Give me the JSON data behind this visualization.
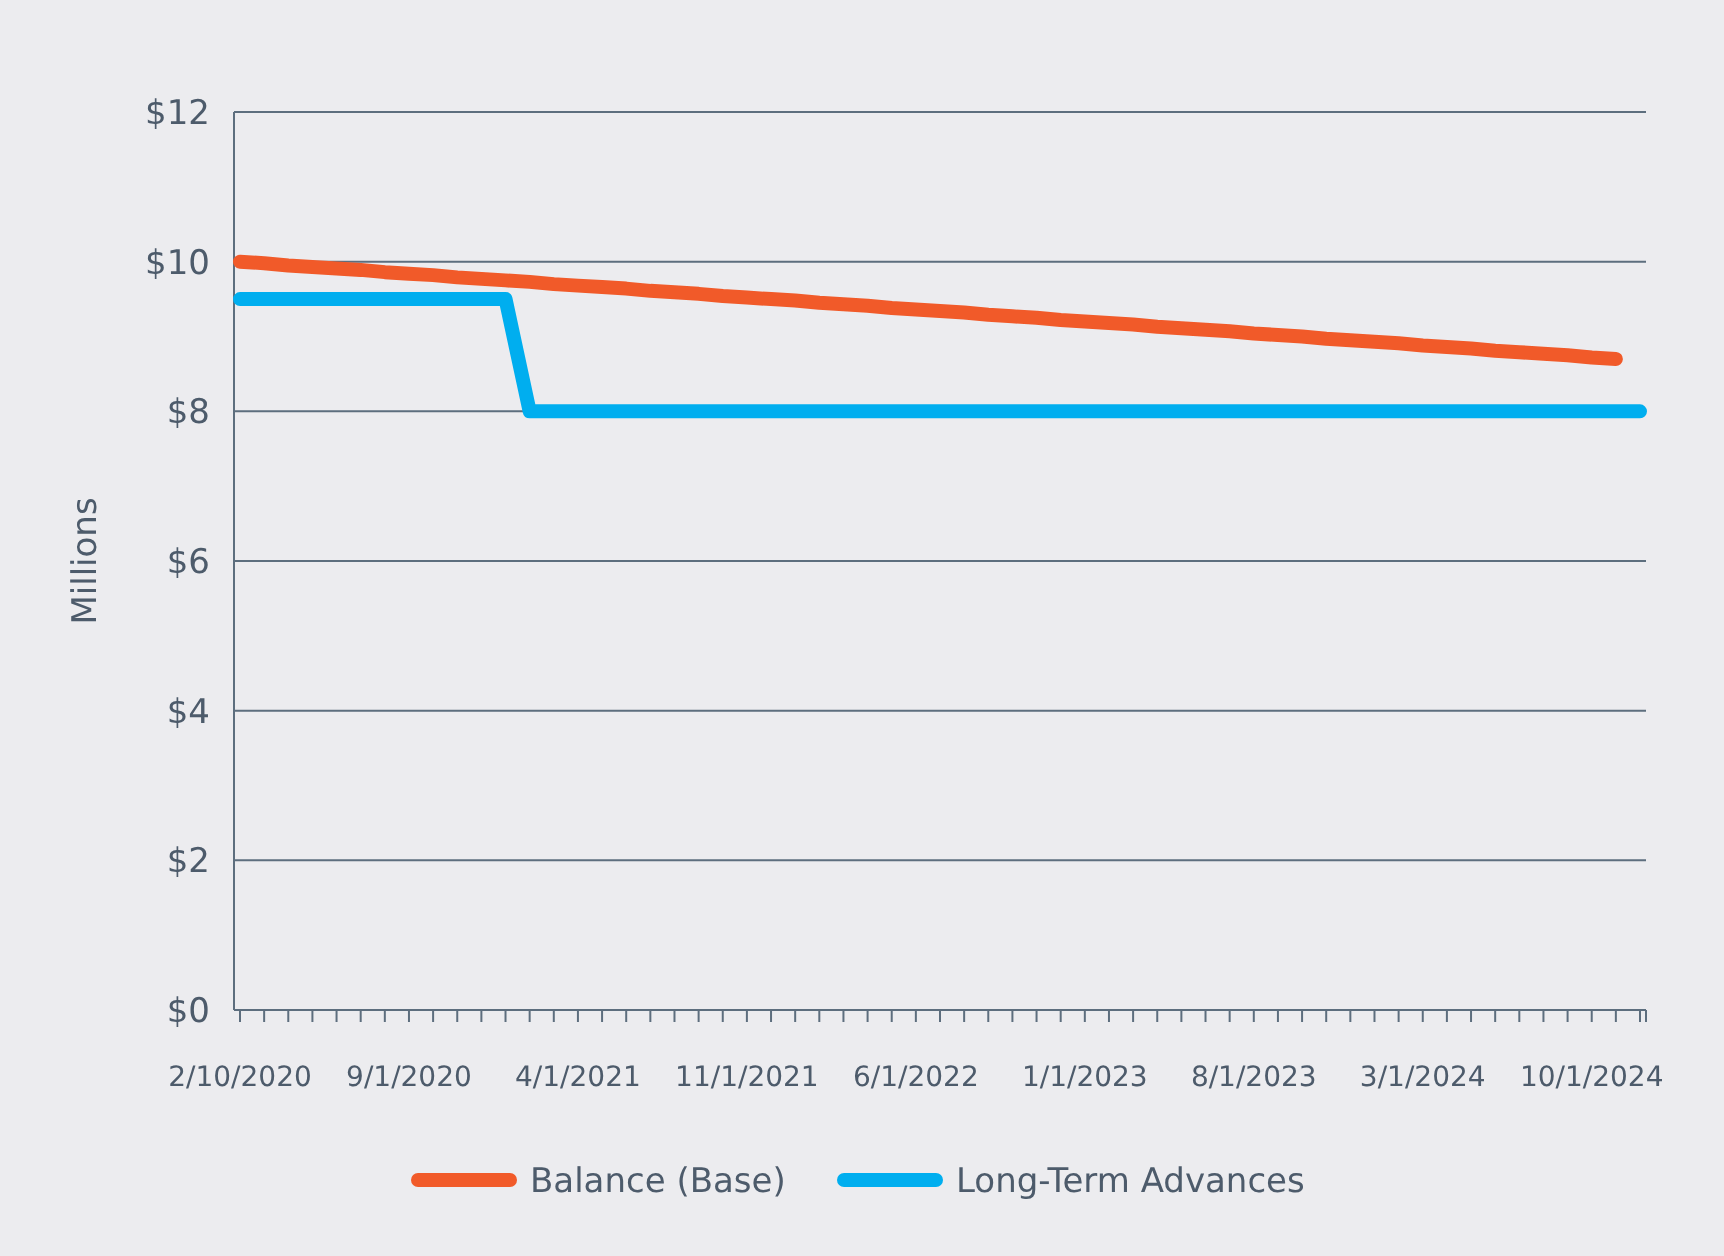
{
  "chart_data": {
    "type": "line",
    "ylabel": "Millions",
    "categories": [
      "2/10/2020",
      null,
      null,
      null,
      null,
      null,
      null,
      "9/1/2020",
      null,
      null,
      null,
      null,
      null,
      null,
      "4/1/2021",
      null,
      null,
      null,
      null,
      null,
      null,
      "11/1/2021",
      null,
      null,
      null,
      null,
      null,
      null,
      "6/1/2022",
      null,
      null,
      null,
      null,
      null,
      null,
      "1/1/2023",
      null,
      null,
      null,
      null,
      null,
      null,
      "8/1/2023",
      null,
      null,
      null,
      null,
      null,
      null,
      "3/1/2024",
      null,
      null,
      null,
      null,
      null,
      null,
      "10/1/2024",
      null,
      null
    ],
    "series": [
      {
        "name": "Balance (Base)",
        "color": "#f15a29",
        "values": [
          10.0,
          9.98,
          9.95,
          9.93,
          9.91,
          9.89,
          9.86,
          9.84,
          9.82,
          9.79,
          9.77,
          9.75,
          9.73,
          9.7,
          9.68,
          9.66,
          9.64,
          9.61,
          9.59,
          9.57,
          9.54,
          9.52,
          9.5,
          9.48,
          9.45,
          9.43,
          9.41,
          9.38,
          9.36,
          9.34,
          9.32,
          9.29,
          9.27,
          9.25,
          9.22,
          9.2,
          9.18,
          9.16,
          9.13,
          9.11,
          9.09,
          9.07,
          9.04,
          9.02,
          9.0,
          8.97,
          8.95,
          8.93,
          8.91,
          8.88,
          8.86,
          8.84,
          8.81,
          8.79,
          8.77,
          8.75,
          8.72,
          8.7,
          null
        ]
      },
      {
        "name": "Long-Term Advances",
        "color": "#00aeef",
        "values": [
          9.5,
          9.5,
          9.5,
          9.5,
          9.5,
          9.5,
          9.5,
          9.5,
          9.5,
          9.5,
          9.5,
          9.5,
          8.0,
          8.0,
          8.0,
          8.0,
          8.0,
          8.0,
          8.0,
          8.0,
          8.0,
          8.0,
          8.0,
          8.0,
          8.0,
          8.0,
          8.0,
          8.0,
          8.0,
          8.0,
          8.0,
          8.0,
          8.0,
          8.0,
          8.0,
          8.0,
          8.0,
          8.0,
          8.0,
          8.0,
          8.0,
          8.0,
          8.0,
          8.0,
          8.0,
          8.0,
          8.0,
          8.0,
          8.0,
          8.0,
          8.0,
          8.0,
          8.0,
          8.0,
          8.0,
          8.0,
          8.0,
          8.0,
          8.0
        ]
      }
    ],
    "ylim": [
      0,
      12
    ],
    "yticks": [
      {
        "value": 0,
        "label": "$0"
      },
      {
        "value": 2,
        "label": "$2"
      },
      {
        "value": 4,
        "label": "$4"
      },
      {
        "value": 6,
        "label": "$6"
      },
      {
        "value": 8,
        "label": "$8"
      },
      {
        "value": 10,
        "label": "$10"
      },
      {
        "value": 12,
        "label": "$12"
      }
    ],
    "grid": "y",
    "legend": "bottom",
    "marker": "none",
    "line_style": "solid"
  }
}
